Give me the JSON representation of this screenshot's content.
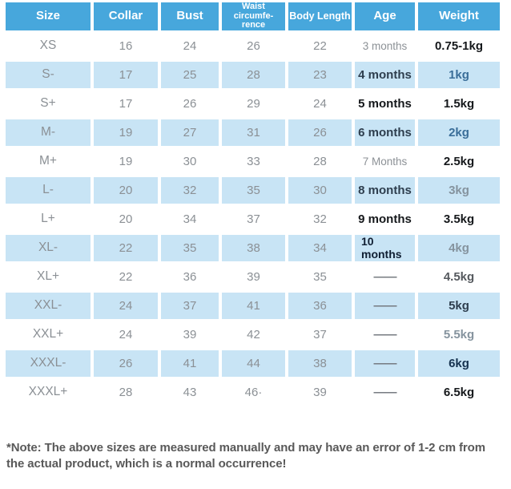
{
  "colors": {
    "header_bg": "#47A7DC",
    "shaded_row_bg": "#C8E4F5",
    "muted_text": "#8C9196",
    "dark_text": "#15181B",
    "navy_text": "#16324F",
    "blue_text": "#3A6E99",
    "note_text": "#595959"
  },
  "chart_data": {
    "type": "table",
    "columns": [
      {
        "id": "size",
        "label": "Size"
      },
      {
        "id": "collar",
        "label": "Collar"
      },
      {
        "id": "bust",
        "label": "Bust"
      },
      {
        "id": "waist",
        "label": "Waist circumfe-rence",
        "label_lines": [
          "Waist circumfe-",
          "rence"
        ],
        "size_class": "hdr-small"
      },
      {
        "id": "body_length",
        "label": "Body Length",
        "size_class": "hdr-med"
      },
      {
        "id": "age",
        "label": "Age"
      },
      {
        "id": "weight",
        "label": "Weight"
      }
    ],
    "rows": [
      {
        "size": "XS",
        "collar": "16",
        "bust": "24",
        "waist": "26",
        "body_length": "22",
        "age": "3 months",
        "weight": "0.75-1kg",
        "shaded": false,
        "age_style": "muted",
        "weight_style": "black"
      },
      {
        "size": "S-",
        "collar": "17",
        "bust": "25",
        "waist": "28",
        "body_length": "23",
        "age": "4 months",
        "weight": "1kg",
        "shaded": true,
        "age_style": "dark",
        "weight_style": "blue"
      },
      {
        "size": "S+",
        "collar": "17",
        "bust": "26",
        "waist": "29",
        "body_length": "24",
        "age": "5 months",
        "weight": "1.5kg",
        "shaded": false,
        "age_style": "black",
        "weight_style": "black"
      },
      {
        "size": "M-",
        "collar": "19",
        "bust": "27",
        "waist": "31",
        "body_length": "26",
        "age": "6 months",
        "weight": "2kg",
        "shaded": true,
        "age_style": "dark",
        "weight_style": "blue"
      },
      {
        "size": "M+",
        "collar": "19",
        "bust": "30",
        "waist": "33",
        "body_length": "28",
        "age": "7 Months",
        "weight": "2.5kg",
        "shaded": false,
        "age_style": "muted",
        "weight_style": "black"
      },
      {
        "size": "L-",
        "collar": "20",
        "bust": "32",
        "waist": "35",
        "body_length": "30",
        "age": "8 months",
        "weight": "3kg",
        "shaded": true,
        "age_style": "dark",
        "weight_style": "muted-bold"
      },
      {
        "size": "L+",
        "collar": "20",
        "bust": "34",
        "waist": "37",
        "body_length": "32",
        "age": "9 months",
        "weight": "3.5kg",
        "shaded": false,
        "age_style": "black",
        "weight_style": "black"
      },
      {
        "size": "XL-",
        "collar": "22",
        "bust": "35",
        "waist": "38",
        "body_length": "34",
        "age": "10\nmonths",
        "weight": "4kg",
        "shaded": true,
        "age_style": "navy-left",
        "weight_style": "muted-bold"
      },
      {
        "size": "XL+",
        "collar": "22",
        "bust": "36",
        "waist": "39",
        "body_length": "35",
        "age": "——",
        "weight": "4.5kg",
        "shaded": false,
        "age_style": "dash",
        "weight_style": "semi"
      },
      {
        "size": "XXL-",
        "collar": "24",
        "bust": "37",
        "waist": "41",
        "body_length": "36",
        "age": "——",
        "weight": "5kg",
        "shaded": true,
        "age_style": "dash",
        "weight_style": "dark"
      },
      {
        "size": "XXL+",
        "collar": "24",
        "bust": "39",
        "waist": "42",
        "body_length": "37",
        "age": "——",
        "weight": "5.5kg",
        "shaded": false,
        "age_style": "dash",
        "weight_style": "muted-bold"
      },
      {
        "size": "XXXL-",
        "collar": "26",
        "bust": "41",
        "waist": "44",
        "body_length": "38",
        "age": "——",
        "weight": "6kg",
        "shaded": true,
        "age_style": "dash",
        "weight_style": "navy"
      },
      {
        "size": "XXXL+",
        "collar": "28",
        "bust": "43",
        "waist": "46·",
        "body_length": "39",
        "age": "——",
        "weight": "6.5kg",
        "shaded": false,
        "age_style": "dash",
        "weight_style": "black"
      }
    ]
  },
  "note": {
    "text": "*Note: The above sizes are measured manually and may have an error of 1-2 cm from the actual product, which is a normal occurrence!"
  }
}
